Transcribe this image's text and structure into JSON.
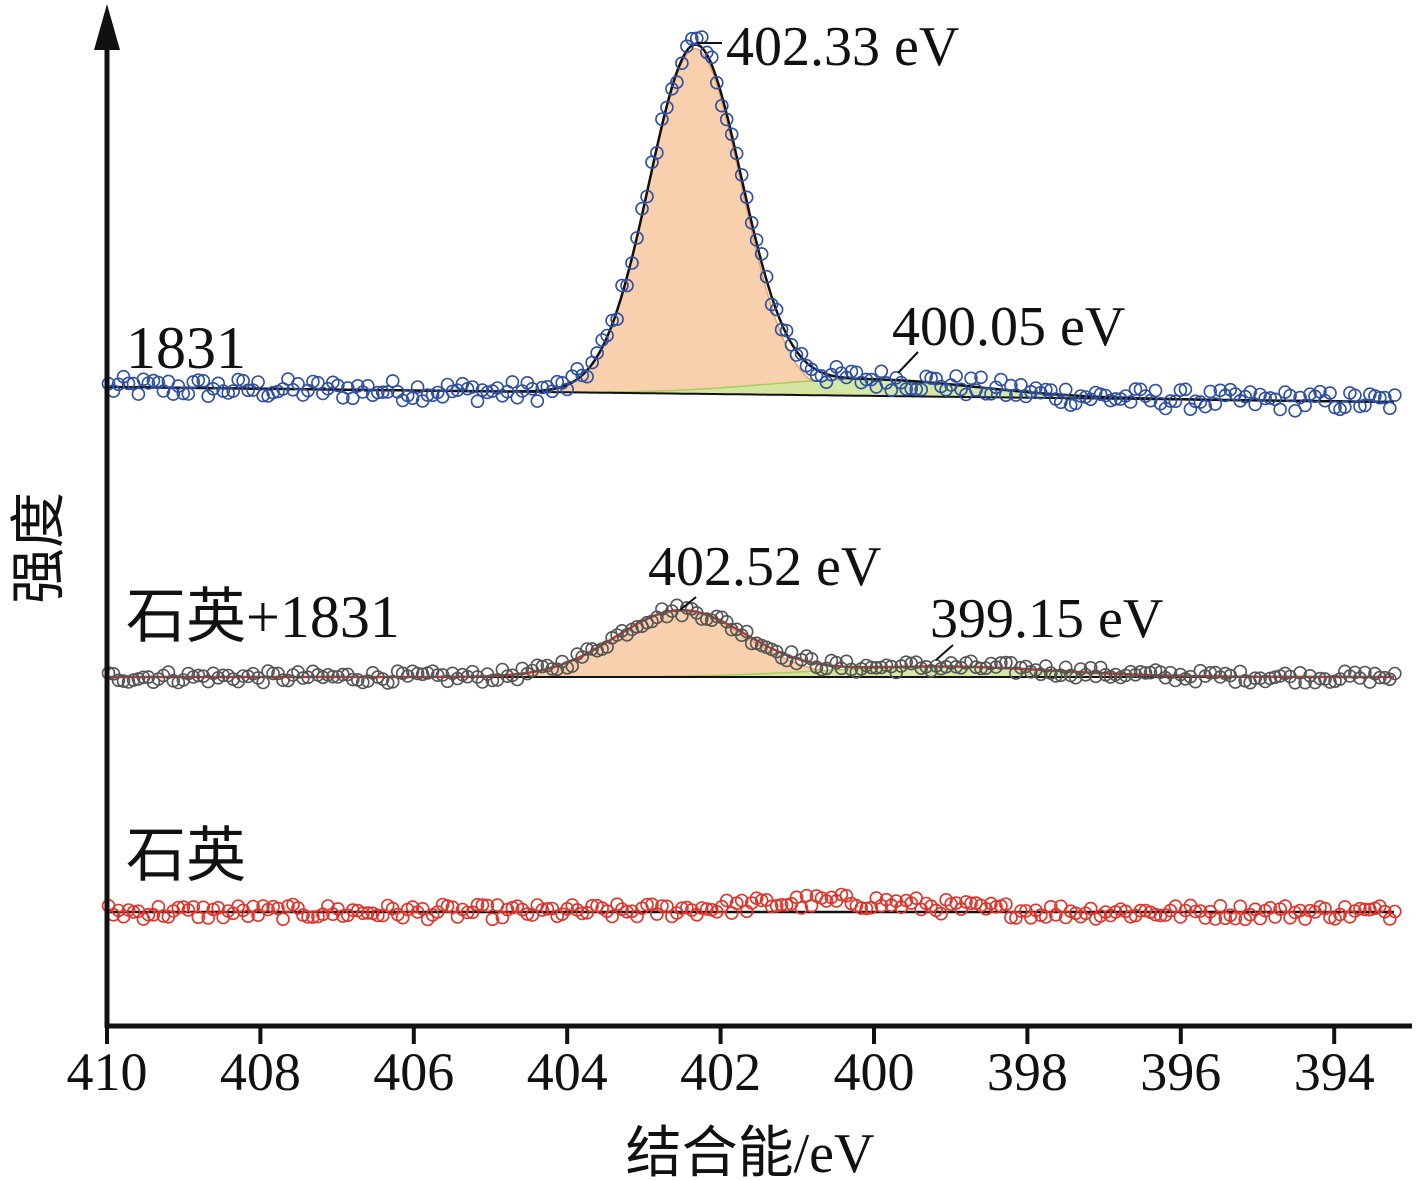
{
  "chart_data": {
    "type": "line",
    "xlabel": "结合能/eV",
    "ylabel": "强度",
    "xlim": [
      410,
      393
    ],
    "xaxis_reversed": true,
    "x_ticks": [
      "410",
      "408",
      "406",
      "404",
      "402",
      "400",
      "398",
      "396",
      "394"
    ],
    "x_tick_values": [
      410,
      408,
      406,
      404,
      402,
      400,
      398,
      396,
      394
    ],
    "series": [
      {
        "name": "1831",
        "marker_color": "#2f4fa0",
        "fit_color": "#111111",
        "peaks": [
          {
            "center": 402.33,
            "label": "402.33 eV",
            "height": 11.5,
            "width": 0.6,
            "fill": "#f8cba4"
          },
          {
            "center": 400.05,
            "label": "400.05 eV",
            "height": 0.55,
            "width": 1.4,
            "fill": "#cfe5a0"
          }
        ],
        "noise": 0.35
      },
      {
        "name": "石英+1831",
        "marker_color": "#555555",
        "fit_color": "#c0392b",
        "peaks": [
          {
            "center": 402.52,
            "label": "402.52 eV",
            "height": 2.2,
            "width": 0.85,
            "fill": "#f8cba4"
          },
          {
            "center": 399.15,
            "label": "399.15 eV",
            "height": 0.35,
            "width": 1.5,
            "fill": "#cfe5a0"
          }
        ],
        "noise": 0.2
      },
      {
        "name": "石英",
        "marker_color": "#e0332a",
        "fit_color": "#111111",
        "peaks": [],
        "noise": 0.25
      }
    ]
  }
}
